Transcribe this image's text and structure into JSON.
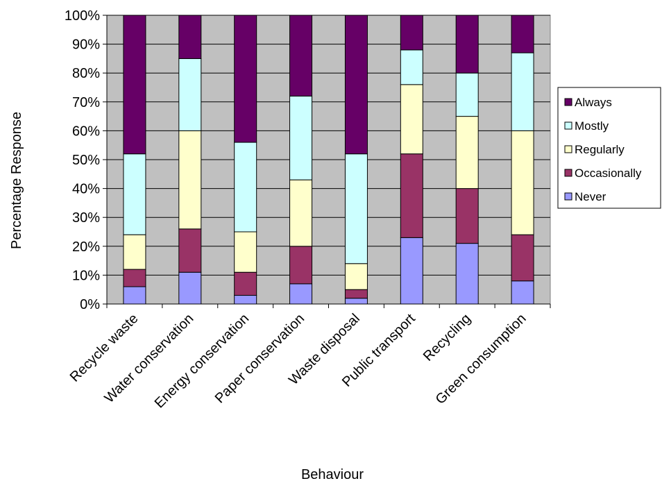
{
  "chart_data": {
    "type": "bar",
    "stacked": true,
    "percent_stacked": true,
    "categories": [
      "Recycle waste",
      "Water conservation",
      "Energy conservation",
      "Paper conservation",
      "Waste disposal",
      "Public transport",
      "Recycling",
      "Green consumption"
    ],
    "series": [
      {
        "name": "Never",
        "color": "#9999ff",
        "values": [
          6,
          11,
          3,
          7,
          2,
          23,
          21,
          8
        ]
      },
      {
        "name": "Occasionally",
        "color": "#993366",
        "values": [
          6,
          15,
          8,
          13,
          3,
          29,
          19,
          16
        ]
      },
      {
        "name": "Regularly",
        "color": "#ffffcc",
        "values": [
          12,
          34,
          14,
          23,
          9,
          24,
          25,
          36
        ]
      },
      {
        "name": "Mostly",
        "color": "#ccffff",
        "values": [
          28,
          25,
          31,
          29,
          38,
          12,
          15,
          27
        ]
      },
      {
        "name": "Always",
        "color": "#660066",
        "values": [
          48,
          15,
          44,
          28,
          48,
          12,
          20,
          13
        ]
      }
    ],
    "legend_order": [
      "Always",
      "Mostly",
      "Regularly",
      "Occasionally",
      "Never"
    ],
    "y_ticks": [
      "0%",
      "10%",
      "20%",
      "30%",
      "40%",
      "50%",
      "60%",
      "70%",
      "80%",
      "90%",
      "100%"
    ],
    "ylim": [
      0,
      100
    ],
    "xlabel": "Behaviour",
    "ylabel": "Percentage Response",
    "title": "",
    "grid": true,
    "plot_background": "#c0c0c0",
    "legend_position": "right"
  }
}
